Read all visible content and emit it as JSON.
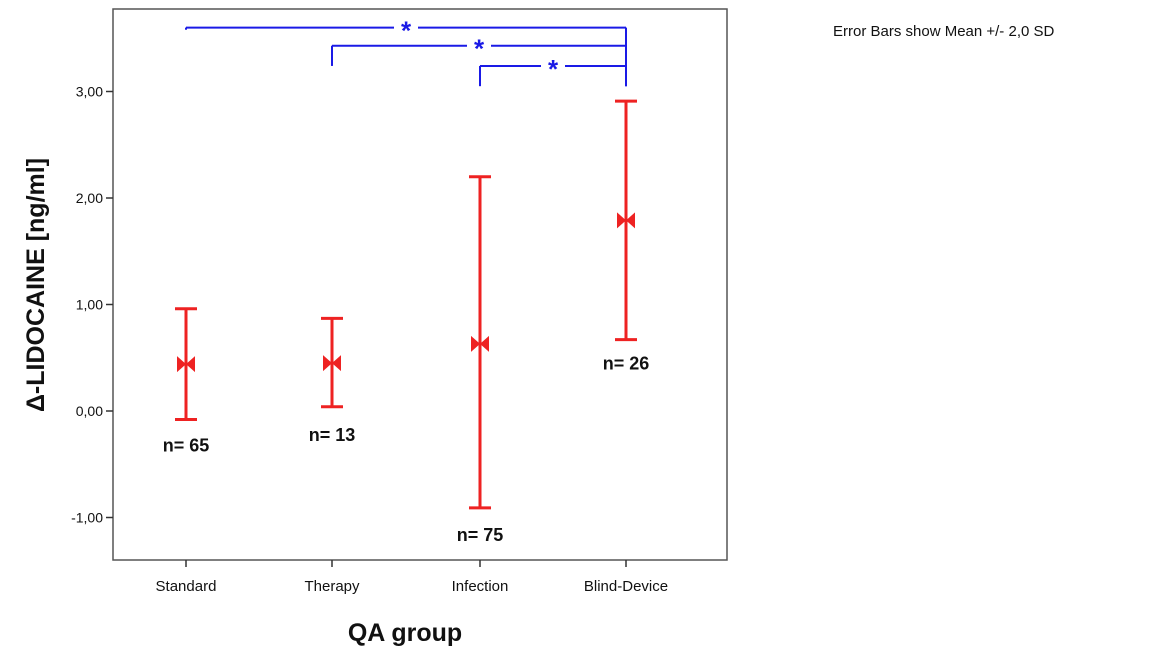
{
  "chart_data": {
    "type": "errorbar",
    "note": "Error Bars show  Mean +/- 2,0 SD",
    "xlabel": "QA group",
    "ylabel": "Δ-LIDOCAINE [ng/ml]",
    "ylim": [
      -1.4,
      3.75
    ],
    "yticks": [
      -1.0,
      0.0,
      1.0,
      2.0,
      3.0
    ],
    "ytick_labels": [
      "-1,00",
      "0,00",
      "1,00",
      "2,00",
      "3,00"
    ],
    "categories": [
      "Standard",
      "Therapy",
      "Infection",
      "Blind-Device"
    ],
    "means": [
      0.44,
      0.45,
      0.63,
      1.79
    ],
    "lower": [
      -0.08,
      0.04,
      -0.91,
      0.67
    ],
    "upper": [
      0.96,
      0.87,
      2.2,
      2.91
    ],
    "n_labels": [
      "n= 65",
      "n= 13",
      "n= 75",
      "n= 26"
    ],
    "n_label_values": [
      -0.38,
      -0.28,
      -1.22,
      0.39
    ],
    "significance": [
      {
        "from": 0,
        "to": 3,
        "label": "*",
        "y": 3.6
      },
      {
        "from": 1,
        "to": 3,
        "label": "*",
        "y": 3.43
      },
      {
        "from": 2,
        "to": 3,
        "label": "*",
        "y": 3.24
      }
    ],
    "significance_bottoms": [
      3.58,
      3.24,
      3.05
    ],
    "bar_color": "#ee2222",
    "bracket_color": "#1a1ae6",
    "grid": false
  }
}
